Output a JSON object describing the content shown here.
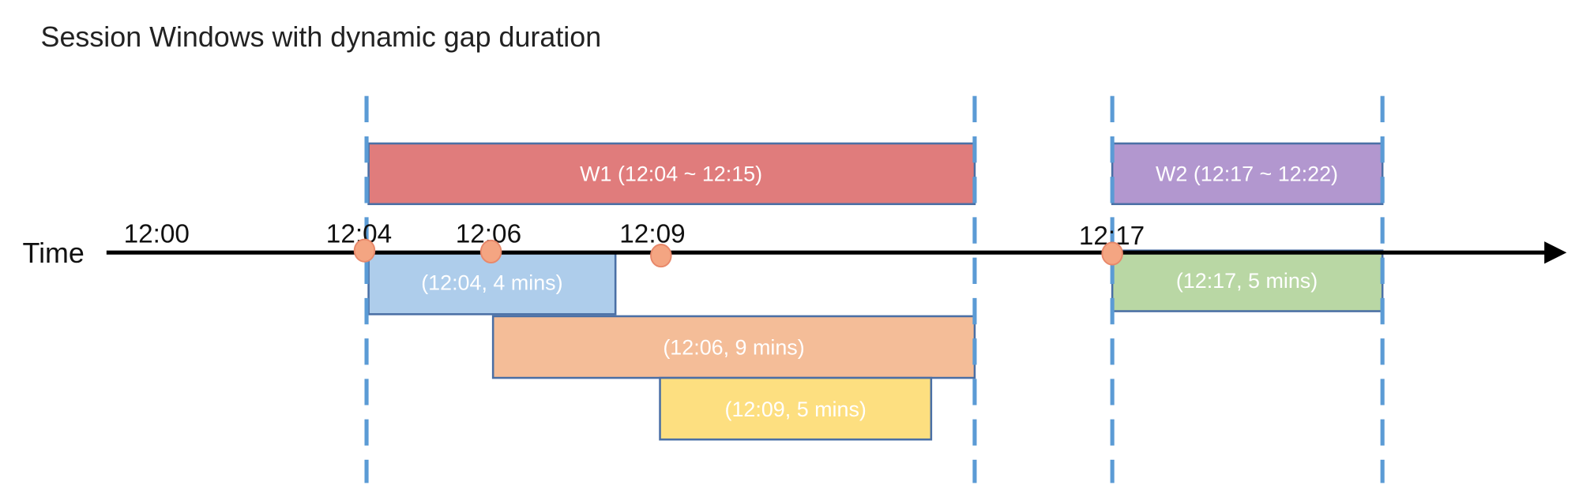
{
  "title": "Session Windows with dynamic gap duration",
  "axis_label": "Time",
  "ticks": [
    "12:00",
    "12:04",
    "12:06",
    "12:09",
    "12:17"
  ],
  "windows": [
    {
      "label": "W1 (12:04 ~ 12:15)",
      "color": "#E07C7C"
    },
    {
      "label": "W2 (12:17 ~ 12:22)",
      "color": "#B297CF"
    }
  ],
  "events": [
    {
      "label": "(12:04, 4 mins)",
      "color": "#AECDEB"
    },
    {
      "label": "(12:06, 9 mins)",
      "color": "#F4BD98"
    },
    {
      "label": "(12:09, 5 mins)",
      "color": "#FDDF80"
    },
    {
      "label": "(12:17, 5 mins)",
      "color": "#B9D7A4"
    }
  ],
  "colors": {
    "boundary": "#5B9BD5",
    "event_dot": "#F4A582",
    "axis": "#000000"
  }
}
